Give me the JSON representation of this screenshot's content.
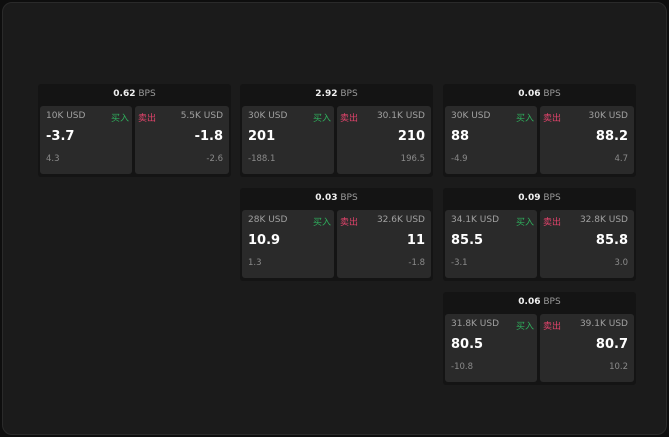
{
  "unit": "BPS",
  "buy_label": "买入",
  "sell_label": "卖出",
  "colors": {
    "buy": "#2fae5c",
    "sell": "#e0436b"
  },
  "cards": [
    {
      "spread": "0.62",
      "buy": {
        "amount": "10K USD",
        "price": "-3.7",
        "change": "4.3"
      },
      "sell": {
        "amount": "5.5K USD",
        "price": "-1.8",
        "change": "-2.6"
      }
    },
    {
      "spread": "2.92",
      "buy": {
        "amount": "30K USD",
        "price": "201",
        "change": "-188.1"
      },
      "sell": {
        "amount": "30.1K USD",
        "price": "210",
        "change": "196.5"
      }
    },
    {
      "spread": "0.06",
      "buy": {
        "amount": "30K USD",
        "price": "88",
        "change": "-4.9"
      },
      "sell": {
        "amount": "30K USD",
        "price": "88.2",
        "change": "4.7"
      }
    },
    {
      "spread": "0.03",
      "buy": {
        "amount": "28K USD",
        "price": "10.9",
        "change": "1.3"
      },
      "sell": {
        "amount": "32.6K USD",
        "price": "11",
        "change": "-1.8"
      }
    },
    {
      "spread": "0.09",
      "buy": {
        "amount": "34.1K USD",
        "price": "85.5",
        "change": "-3.1"
      },
      "sell": {
        "amount": "32.8K USD",
        "price": "85.8",
        "change": "3.0"
      }
    },
    {
      "spread": "0.06",
      "buy": {
        "amount": "31.8K USD",
        "price": "80.5",
        "change": "-10.8"
      },
      "sell": {
        "amount": "39.1K USD",
        "price": "80.7",
        "change": "10.2"
      }
    }
  ]
}
